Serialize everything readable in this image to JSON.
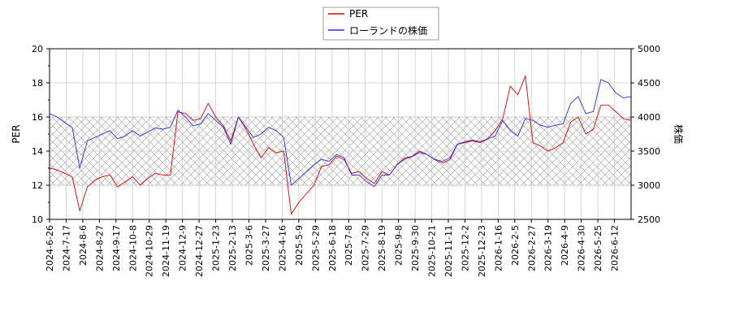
{
  "chart_data": {
    "type": "line",
    "left_axis": {
      "label": "PER",
      "ylim": [
        10,
        20
      ],
      "ticks": [
        "10",
        "12",
        "14",
        "16",
        "18",
        "20"
      ]
    },
    "right_axis": {
      "label": "株価",
      "ylim": [
        2500,
        5000
      ],
      "ticks": [
        "2500",
        "3000",
        "3500",
        "4000",
        "4500",
        "5000"
      ]
    },
    "x_tick_labels": [
      "2024-6-26",
      "2024-7-17",
      "2024-8-6",
      "2024-8-27",
      "2024-9-17",
      "2024-10-8",
      "2024-10-29",
      "2024-11-19",
      "2024-12-9",
      "2024-12-27",
      "2025-1-23",
      "2025-2-13",
      "2025-3-6",
      "2025-3-27",
      "2025-4-16",
      "2025-5-9",
      "2025-5-29",
      "2025-6-18",
      "2025-7-8",
      "2025-7-29",
      "2025-8-19",
      "2025-9-8",
      "2025-9-30",
      "2025-10-21",
      "2025-11-11",
      "2025-12-2",
      "2025-12-23",
      "2026-1-16",
      "2026-2-5",
      "2026-2-27",
      "2026-3-19",
      "2026-4-9",
      "2026-4-30",
      "2026-5-25",
      "2026-6-12"
    ],
    "shaded_band": {
      "axis": "left",
      "range": [
        12,
        16
      ],
      "pattern": "crosshatch"
    },
    "grid": true,
    "legend": {
      "position": "top-center",
      "entries": [
        "PER",
        "ローランドの株価"
      ]
    },
    "series": [
      {
        "name": "PER",
        "axis": "left",
        "color": "#dd0000",
        "values": [
          13.0,
          12.9,
          12.7,
          12.5,
          10.5,
          11.9,
          12.3,
          12.5,
          12.6,
          11.9,
          12.2,
          12.5,
          12.0,
          12.4,
          12.7,
          12.6,
          12.6,
          16.3,
          16.2,
          15.8,
          15.9,
          16.8,
          16.0,
          15.5,
          14.6,
          16.0,
          15.3,
          14.4,
          13.6,
          14.2,
          13.9,
          14.0,
          10.3,
          11.0,
          11.5,
          12.0,
          13.1,
          13.2,
          13.7,
          13.5,
          12.7,
          12.8,
          12.4,
          12.1,
          12.8,
          12.6,
          13.2,
          13.6,
          13.7,
          14.0,
          13.8,
          13.5,
          13.3,
          13.5,
          14.4,
          14.5,
          14.6,
          14.5,
          14.7,
          15.2,
          15.9,
          17.8,
          17.3,
          18.4,
          14.5,
          14.3,
          14.0,
          14.2,
          14.5,
          15.7,
          16.0,
          15.0,
          15.3,
          16.7,
          16.7,
          16.3,
          15.9,
          15.8
        ]
      },
      {
        "name": "ローランドの株価",
        "axis": "right",
        "color": "#2a2af0",
        "values": [
          4050,
          4000,
          3920,
          3850,
          3250,
          3650,
          3700,
          3750,
          3800,
          3680,
          3720,
          3800,
          3720,
          3780,
          3840,
          3820,
          3850,
          4100,
          4000,
          3870,
          3900,
          4050,
          3950,
          3850,
          3600,
          4000,
          3850,
          3700,
          3750,
          3850,
          3800,
          3700,
          3000,
          3100,
          3200,
          3300,
          3380,
          3350,
          3450,
          3400,
          3150,
          3150,
          3050,
          2980,
          3150,
          3150,
          3300,
          3380,
          3420,
          3480,
          3450,
          3380,
          3350,
          3400,
          3600,
          3640,
          3660,
          3640,
          3680,
          3720,
          3950,
          3800,
          3720,
          3980,
          3950,
          3880,
          3850,
          3880,
          3900,
          4200,
          4300,
          4050,
          4080,
          4550,
          4500,
          4350,
          4280,
          4300
        ]
      }
    ]
  }
}
